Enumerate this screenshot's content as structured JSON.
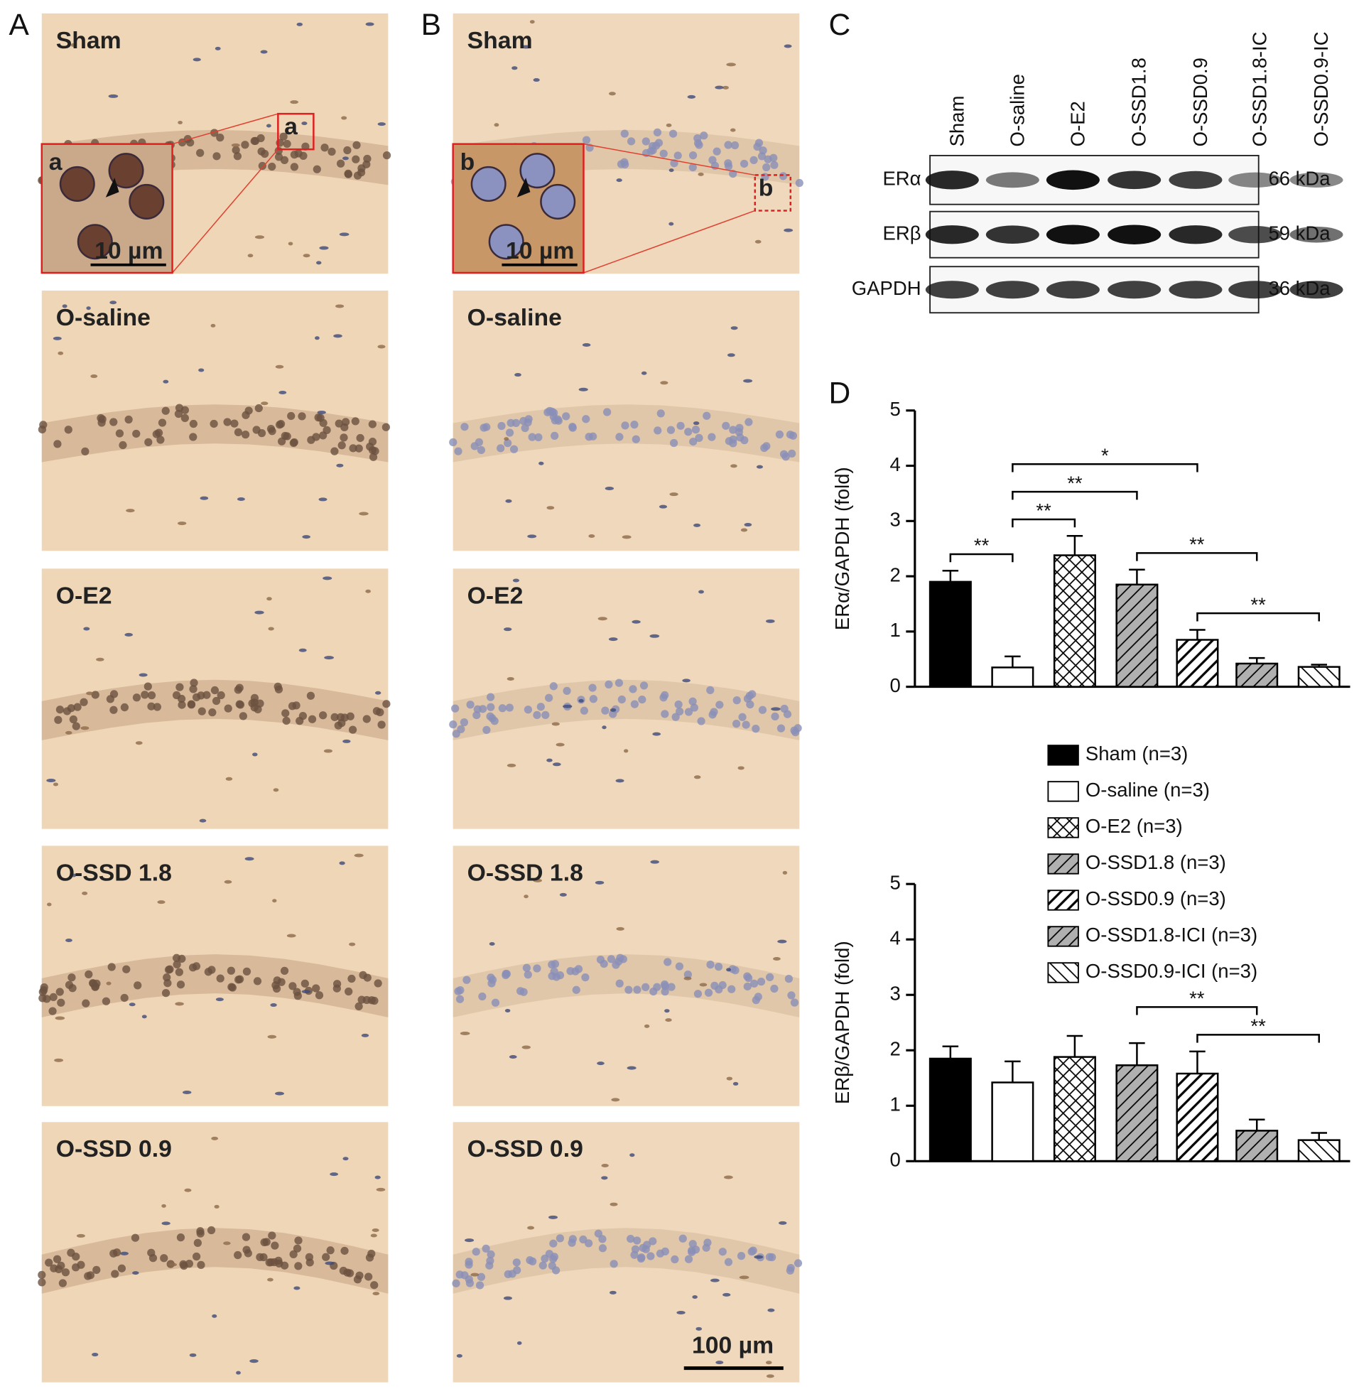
{
  "panels": [
    "A",
    "B",
    "C",
    "D"
  ],
  "micrographs": {
    "row_labels": [
      "Sham",
      "O-saline",
      "O-E2",
      "O-SSD 1.8",
      "O-SSD 0.9"
    ],
    "inset_labels": [
      "a",
      "b"
    ],
    "inset_scale": "10 µm",
    "scale_bar": "100 µm"
  },
  "western_blot": {
    "lanes": [
      "Sham",
      "O-saline",
      "O-E2",
      "O-SSD1.8",
      "O-SSD0.9",
      "O-SSD1.8-IC",
      "O-SSD0.9-IC"
    ],
    "bands": [
      {
        "name": "ERα",
        "size": "66 kDa"
      },
      {
        "name": "ERβ",
        "size": "59 kDa"
      },
      {
        "name": "GAPDH",
        "size": "36 kDa"
      }
    ]
  },
  "legend": [
    {
      "name": "Sham (n=3)",
      "color": "#000000",
      "pattern": "solid"
    },
    {
      "name": "O-saline (n=3)",
      "color": "#ffffff",
      "pattern": "solid"
    },
    {
      "name": "O-E2 (n=3)",
      "color": "#ffffff",
      "pattern": "crosshatch"
    },
    {
      "name": "O-SSD1.8 (n=3)",
      "color": "#b0b0b0",
      "pattern": "hatch"
    },
    {
      "name": "O-SSD0.9 (n=3)",
      "color": "#ffffff",
      "pattern": "hatch"
    },
    {
      "name": "O-SSD1.8-ICI (n=3)",
      "color": "#b0b0b0",
      "pattern": "hatch"
    },
    {
      "name": "O-SSD0.9-ICI (n=3)",
      "color": "#ffffff",
      "pattern": "backhatch"
    }
  ],
  "chart_data": [
    {
      "type": "bar",
      "y_label": "ERα/GAPDH (fold)",
      "values": [
        1.9,
        0.35,
        2.38,
        1.85,
        0.85,
        0.42,
        0.36
      ],
      "errors": [
        0.2,
        0.2,
        0.35,
        0.27,
        0.18,
        0.1,
        0.04
      ],
      "ylim": [
        0,
        5
      ],
      "yticks": [
        0,
        1,
        2,
        3,
        4,
        5
      ],
      "grid": false,
      "significance": [
        {
          "from": 0,
          "to": 1,
          "label": "**"
        },
        {
          "from": 1,
          "to": 2,
          "label": "**"
        },
        {
          "from": 1,
          "to": 3,
          "label": "**"
        },
        {
          "from": 1,
          "to": 4,
          "label": "*"
        },
        {
          "from": 3,
          "to": 5,
          "label": "**"
        },
        {
          "from": 4,
          "to": 6,
          "label": "**"
        }
      ]
    },
    {
      "type": "bar",
      "y_label": "ERβ/GAPDH (fold)",
      "values": [
        1.85,
        1.42,
        1.88,
        1.73,
        1.58,
        0.55,
        0.38
      ],
      "errors": [
        0.22,
        0.38,
        0.38,
        0.4,
        0.4,
        0.2,
        0.13
      ],
      "ylim": [
        0,
        5
      ],
      "yticks": [
        0,
        1,
        2,
        3,
        4,
        5
      ],
      "grid": false,
      "significance": [
        {
          "from": 4,
          "to": 6,
          "label": "**"
        },
        {
          "from": 3,
          "to": 5,
          "label": "**"
        }
      ]
    }
  ]
}
